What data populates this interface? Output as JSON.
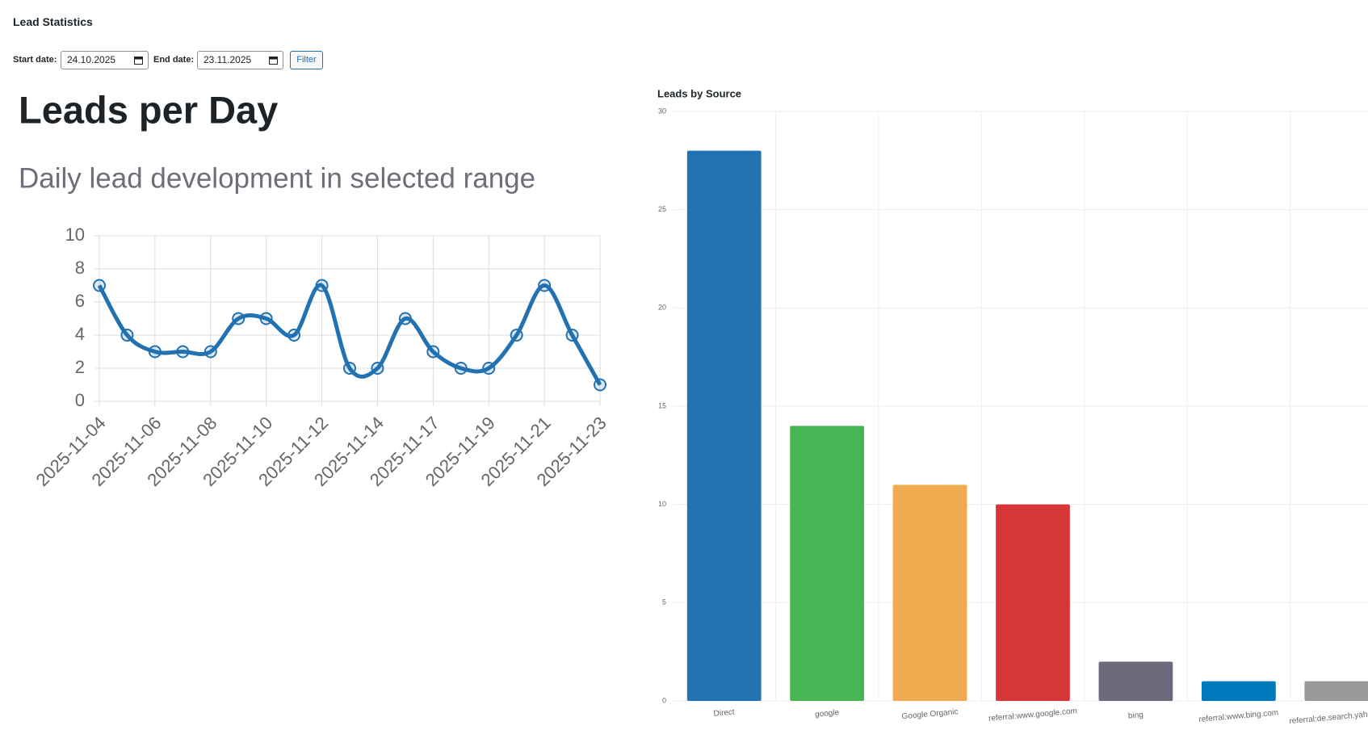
{
  "header": {
    "title": "Lead Statistics"
  },
  "filter": {
    "start_label": "Start date:",
    "start_value": "24.10.2025",
    "end_label": "End date:",
    "end_value": "23.11.2025",
    "button": "Filter"
  },
  "chart_data": [
    {
      "type": "line",
      "title": "Leads per Day",
      "subtitle": "Daily lead development in selected range",
      "categories": [
        "2025-11-04",
        null,
        "2025-11-06",
        null,
        "2025-11-08",
        null,
        "2025-11-10",
        null,
        "2025-11-12",
        null,
        "2025-11-14",
        null,
        "2025-11-17",
        null,
        "2025-11-19",
        null,
        "2025-11-21",
        null,
        "2025-11-23"
      ],
      "values": [
        7,
        4,
        3,
        3,
        3,
        5,
        5,
        4,
        7,
        2,
        2,
        5,
        3,
        2,
        2,
        4,
        7,
        4,
        1
      ],
      "color": "#2271b1",
      "ylim": [
        0,
        10
      ],
      "yticks": [
        0,
        2,
        4,
        6,
        8,
        10
      ],
      "grid": true
    },
    {
      "type": "bar",
      "title": "Leads by Source",
      "categories": [
        "Direct",
        "google",
        "Google Organic",
        "referral:www.google.com",
        "bing",
        "referral:www.bing.com",
        "referral:de.search.yahoo.com"
      ],
      "values": [
        28,
        14,
        11,
        10,
        2,
        1,
        1
      ],
      "colors": [
        "#2271b0",
        "#47b553",
        "#eeab4f",
        "#d63638",
        "#6e6a7e",
        "#0079bc",
        "#999999"
      ],
      "ylim": [
        0,
        30
      ],
      "yticks": [
        0,
        5,
        10,
        15,
        20,
        25,
        30
      ],
      "grid": true
    }
  ]
}
